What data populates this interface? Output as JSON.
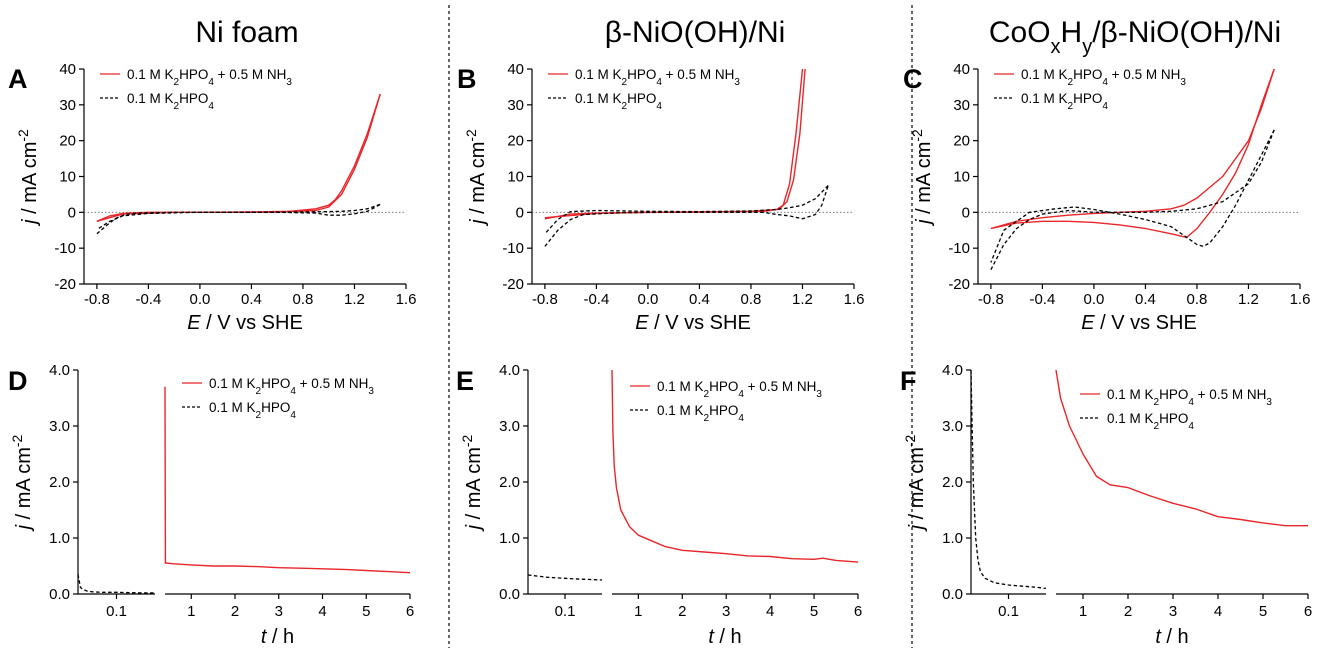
{
  "figure": {
    "columns": [
      {
        "title_html": "Ni foam"
      },
      {
        "title_html": "β-NiO(OH)/Ni"
      },
      {
        "title_html": "CoO<tspan baseline-shift='sub' font-size='20'>x</tspan>H<tspan baseline-shift='sub' font-size='20'>y</tspan>/β-NiO(OH)/Ni"
      }
    ],
    "colors": {
      "nh3": "#e8262b",
      "blank": "#000000"
    }
  },
  "chart_data": [
    {
      "panel": "A",
      "type": "line",
      "xlabel_parts": [
        "E",
        " / V vs SHE"
      ],
      "ylabel_parts": [
        "j",
        " / mA cm",
        "-2"
      ],
      "xlim": [
        -0.9,
        1.6
      ],
      "ylim": [
        -20,
        40
      ],
      "xticks": [
        -0.8,
        -0.4,
        0.0,
        0.4,
        0.8,
        1.2,
        1.6
      ],
      "xtick_labels": [
        "-0.8",
        "-0.4",
        "0.0",
        "0.4",
        "0.8",
        "1.2",
        "1.6"
      ],
      "yticks": [
        -20,
        -10,
        0,
        10,
        20,
        30,
        40
      ],
      "ytick_labels": [
        "-20",
        "-10",
        "0",
        "10",
        "20",
        "30",
        "40"
      ],
      "legend": [
        "0.1 M K<tspan baseline-shift='sub' font-size='10'>2</tspan>HPO<tspan baseline-shift='sub' font-size='10'>4</tspan> + 0.5 M NH<tspan baseline-shift='sub' font-size='10'>3</tspan>",
        "0.1 M K<tspan baseline-shift='sub' font-size='10'>2</tspan>HPO<tspan baseline-shift='sub' font-size='10'>4</tspan>"
      ],
      "series": [
        {
          "style": "solid",
          "color": "#e8262b",
          "x": [
            -0.8,
            -0.7,
            -0.6,
            -0.4,
            0.0,
            0.4,
            0.7,
            0.9,
            1.0,
            1.05,
            1.1,
            1.2,
            1.3,
            1.4
          ],
          "y": [
            -2.5,
            -1.0,
            -0.3,
            0.0,
            0.0,
            0.1,
            0.3,
            1.0,
            2.0,
            3.5,
            6.0,
            13.0,
            22.0,
            33.0
          ]
        },
        {
          "style": "solid",
          "color": "#e8262b",
          "x": [
            1.4,
            1.3,
            1.2,
            1.1,
            1.0,
            0.9,
            0.6,
            0.2,
            -0.2,
            -0.6,
            -0.8
          ],
          "y": [
            33.0,
            21.0,
            12.0,
            5.0,
            1.5,
            0.5,
            0.1,
            0.0,
            0.0,
            -0.5,
            -2.5
          ]
        },
        {
          "style": "dashed",
          "color": "#000000",
          "x": [
            -0.8,
            -0.72,
            -0.65,
            -0.58,
            -0.5,
            -0.2,
            0.2,
            0.6,
            0.9,
            1.0,
            1.1,
            1.2,
            1.3,
            1.35,
            1.4
          ],
          "y": [
            -6.0,
            -3.5,
            -1.6,
            -0.6,
            -0.2,
            0.0,
            0.0,
            0.0,
            -0.2,
            -0.8,
            -0.8,
            -0.4,
            0.3,
            1.2,
            2.2
          ]
        },
        {
          "style": "dashed",
          "color": "#000000",
          "x": [
            1.4,
            1.3,
            1.2,
            1.1,
            1.0,
            0.8,
            0.4,
            0.0,
            -0.4,
            -0.6,
            -0.7,
            -0.8
          ],
          "y": [
            2.2,
            1.0,
            0.5,
            0.3,
            0.2,
            0.1,
            0.0,
            0.0,
            -0.3,
            -1.0,
            -2.5,
            -4.8
          ]
        }
      ]
    },
    {
      "panel": "B",
      "type": "line",
      "xlabel_parts": [
        "E",
        " / V vs SHE"
      ],
      "ylabel_parts": [
        "j",
        " / mA cm",
        "-2"
      ],
      "xlim": [
        -0.9,
        1.6
      ],
      "ylim": [
        -20,
        40
      ],
      "xticks": [
        -0.8,
        -0.4,
        0.0,
        0.4,
        0.8,
        1.2,
        1.6
      ],
      "xtick_labels": [
        "-0.8",
        "-0.4",
        "0.0",
        "0.4",
        "0.8",
        "1.2",
        "1.6"
      ],
      "yticks": [
        -20,
        -10,
        0,
        10,
        20,
        30,
        40
      ],
      "ytick_labels": [
        "-20",
        "-10",
        "0",
        "10",
        "20",
        "30",
        "40"
      ],
      "legend": [
        "0.1 M K<tspan baseline-shift='sub' font-size='10'>2</tspan>HPO<tspan baseline-shift='sub' font-size='10'>4</tspan> + 0.5 M NH<tspan baseline-shift='sub' font-size='10'>3</tspan>",
        "0.1 M K<tspan baseline-shift='sub' font-size='10'>2</tspan>HPO<tspan baseline-shift='sub' font-size='10'>4</tspan>"
      ],
      "series": [
        {
          "style": "solid",
          "color": "#e8262b",
          "x": [
            -0.8,
            -0.6,
            -0.4,
            0.0,
            0.4,
            0.8,
            1.0,
            1.05,
            1.1,
            1.15,
            1.2
          ],
          "y": [
            -1.8,
            -0.5,
            -0.2,
            0.0,
            0.1,
            0.3,
            0.8,
            2.0,
            8.0,
            22.0,
            40.0
          ]
        },
        {
          "style": "solid",
          "color": "#e8262b",
          "x": [
            1.22,
            1.18,
            1.13,
            1.08,
            1.02,
            0.9,
            0.4,
            0.0,
            -0.4,
            -0.8
          ],
          "y": [
            40.0,
            22.0,
            9.0,
            3.0,
            0.9,
            0.3,
            0.1,
            0.0,
            -0.3,
            -1.5
          ]
        },
        {
          "style": "dashed",
          "color": "#000000",
          "x": [
            -0.8,
            -0.7,
            -0.6,
            -0.5,
            -0.2,
            0.2,
            0.6,
            0.9,
            1.0,
            1.1,
            1.2,
            1.3,
            1.35,
            1.4
          ],
          "y": [
            -9.5,
            -5.0,
            -2.0,
            -0.6,
            -0.1,
            0.0,
            0.0,
            0.0,
            -0.6,
            -1.0,
            -1.8,
            -0.6,
            2.0,
            7.5
          ]
        },
        {
          "style": "dashed",
          "color": "#000000",
          "x": [
            1.4,
            1.3,
            1.2,
            1.1,
            1.0,
            0.8,
            0.4,
            0.0,
            -0.4,
            -0.6,
            -0.7,
            -0.8
          ],
          "y": [
            7.5,
            3.8,
            2.0,
            1.3,
            0.8,
            0.4,
            0.2,
            0.3,
            0.5,
            0.2,
            -2.0,
            -6.0
          ]
        }
      ]
    },
    {
      "panel": "C",
      "type": "line",
      "xlabel_parts": [
        "E",
        " / V vs SHE"
      ],
      "ylabel_parts": [
        "j",
        " / mA cm",
        "-2"
      ],
      "xlim": [
        -0.9,
        1.6
      ],
      "ylim": [
        -20,
        40
      ],
      "xticks": [
        -0.8,
        -0.4,
        0.0,
        0.4,
        0.8,
        1.2,
        1.6
      ],
      "xtick_labels": [
        "-0.8",
        "-0.4",
        "0.0",
        "0.4",
        "0.8",
        "1.2",
        "1.6"
      ],
      "yticks": [
        -20,
        -10,
        0,
        10,
        20,
        30,
        40
      ],
      "ytick_labels": [
        "-20",
        "-10",
        "0",
        "10",
        "20",
        "30",
        "40"
      ],
      "legend": [
        "0.1 M K<tspan baseline-shift='sub' font-size='10'>2</tspan>HPO<tspan baseline-shift='sub' font-size='10'>4</tspan> + 0.5 M NH<tspan baseline-shift='sub' font-size='10'>3</tspan>",
        "0.1 M K<tspan baseline-shift='sub' font-size='10'>2</tspan>HPO<tspan baseline-shift='sub' font-size='10'>4</tspan>"
      ],
      "series": [
        {
          "style": "solid",
          "color": "#e8262b",
          "x": [
            -0.8,
            -0.6,
            -0.4,
            -0.2,
            0.0,
            0.2,
            0.4,
            0.6,
            0.7,
            0.8,
            1.0,
            1.2,
            1.3,
            1.4
          ],
          "y": [
            -4.5,
            -2.5,
            -1.5,
            -0.8,
            -0.3,
            0.0,
            0.3,
            1.0,
            2.0,
            4.0,
            10.0,
            20.0,
            29.0,
            40.0
          ]
        },
        {
          "style": "solid",
          "color": "#e8262b",
          "x": [
            1.4,
            1.3,
            1.2,
            1.1,
            1.0,
            0.9,
            0.8,
            0.72,
            0.6,
            0.4,
            0.2,
            0.0,
            -0.2,
            -0.4,
            -0.6,
            -0.8
          ],
          "y": [
            40.0,
            30.0,
            19.0,
            11.0,
            5.0,
            0.0,
            -4.5,
            -7.0,
            -6.0,
            -4.5,
            -3.5,
            -2.8,
            -2.5,
            -2.5,
            -3.0,
            -4.5
          ]
        },
        {
          "style": "dashed",
          "color": "#000000",
          "x": [
            -0.8,
            -0.7,
            -0.6,
            -0.5,
            -0.4,
            -0.2,
            -0.1,
            0.0,
            0.2,
            0.4,
            0.6,
            0.8,
            1.0,
            1.2,
            1.3,
            1.4
          ],
          "y": [
            -16.0,
            -9.0,
            -4.5,
            -2.0,
            -0.5,
            0.5,
            0.3,
            0.0,
            0.0,
            0.0,
            0.3,
            1.0,
            3.0,
            8.0,
            14.0,
            23.0
          ]
        },
        {
          "style": "dashed",
          "color": "#000000",
          "x": [
            1.4,
            1.3,
            1.2,
            1.1,
            1.0,
            0.9,
            0.85,
            0.8,
            0.7,
            0.6,
            0.4,
            0.2,
            0.0,
            -0.15,
            -0.3,
            -0.5,
            -0.7,
            -0.8
          ],
          "y": [
            23.0,
            16.0,
            9.0,
            2.0,
            -4.0,
            -8.5,
            -9.5,
            -9.0,
            -6.5,
            -4.0,
            -2.0,
            -0.5,
            0.8,
            1.5,
            1.0,
            0.0,
            -5.0,
            -14.0
          ]
        }
      ]
    },
    {
      "panel": "D",
      "type": "line",
      "xlabel_parts": [
        "t",
        " / h"
      ],
      "ylabel_parts": [
        "j",
        " / mA cm",
        "-2"
      ],
      "ylim": [
        0,
        4.0
      ],
      "yticks": [
        0,
        1,
        2,
        3,
        4
      ],
      "ytick_labels": [
        "0.0",
        "1.0",
        "2.0",
        "3.0",
        "4.0"
      ],
      "left_segment": {
        "xlim": [
          0.02,
          0.18
        ],
        "xticks": [
          0.1
        ],
        "xtick_labels": [
          "0.1"
        ]
      },
      "right_segment": {
        "xlim": [
          0.4,
          6.0
        ],
        "xticks": [
          1,
          2,
          3,
          4,
          5,
          6
        ],
        "xtick_labels": [
          "1",
          "2",
          "3",
          "4",
          "5",
          "6"
        ]
      },
      "legend": [
        "0.1 M K<tspan baseline-shift='sub' font-size='10'>2</tspan>HPO<tspan baseline-shift='sub' font-size='10'>4</tspan> + 0.5 M NH<tspan baseline-shift='sub' font-size='10'>3</tspan>",
        "0.1 M K<tspan baseline-shift='sub' font-size='10'>2</tspan>HPO<tspan baseline-shift='sub' font-size='10'>4</tspan>"
      ],
      "series": [
        {
          "segment": "left",
          "style": "dashed",
          "color": "#000000",
          "x": [
            0.02,
            0.025,
            0.03,
            0.04,
            0.05,
            0.07,
            0.1,
            0.15,
            0.18
          ],
          "y": [
            0.35,
            0.12,
            0.08,
            0.05,
            0.04,
            0.03,
            0.03,
            0.02,
            0.02
          ]
        },
        {
          "segment": "right",
          "style": "solid",
          "color": "#e8262b",
          "x": [
            0.4,
            0.41,
            0.42,
            0.45,
            0.6,
            1.0,
            1.5,
            2.0,
            2.5,
            3.0,
            3.5,
            4.0,
            4.5,
            5.0,
            5.5,
            6.0
          ],
          "y": [
            3.7,
            0.55,
            0.56,
            0.55,
            0.54,
            0.52,
            0.5,
            0.5,
            0.49,
            0.47,
            0.46,
            0.45,
            0.44,
            0.42,
            0.4,
            0.38
          ]
        }
      ]
    },
    {
      "panel": "E",
      "type": "line",
      "xlabel_parts": [
        "t",
        " / h"
      ],
      "ylabel_parts": [
        "j",
        " / mA cm",
        "-2"
      ],
      "ylim": [
        0,
        4.0
      ],
      "yticks": [
        0,
        1,
        2,
        3,
        4
      ],
      "ytick_labels": [
        "0.0",
        "1.0",
        "2.0",
        "3.0",
        "4.0"
      ],
      "left_segment": {
        "xlim": [
          0.02,
          0.18
        ],
        "xticks": [
          0.1
        ],
        "xtick_labels": [
          "0.1"
        ]
      },
      "right_segment": {
        "xlim": [
          0.4,
          6.0
        ],
        "xticks": [
          1,
          2,
          3,
          4,
          5,
          6
        ],
        "xtick_labels": [
          "1",
          "2",
          "3",
          "4",
          "5",
          "6"
        ]
      },
      "legend": [
        "0.1 M K<tspan baseline-shift='sub' font-size='10'>2</tspan>HPO<tspan baseline-shift='sub' font-size='10'>4</tspan> + 0.5 M NH<tspan baseline-shift='sub' font-size='10'>3</tspan>",
        "0.1 M K<tspan baseline-shift='sub' font-size='10'>2</tspan>HPO<tspan baseline-shift='sub' font-size='10'>4</tspan>"
      ],
      "series": [
        {
          "segment": "left",
          "style": "dashed",
          "color": "#000000",
          "x": [
            0.02,
            0.04,
            0.06,
            0.08,
            0.1,
            0.12,
            0.15,
            0.18
          ],
          "y": [
            0.34,
            0.32,
            0.3,
            0.29,
            0.28,
            0.27,
            0.26,
            0.25
          ]
        },
        {
          "segment": "right",
          "style": "solid",
          "color": "#e8262b",
          "x": [
            0.4,
            0.42,
            0.45,
            0.5,
            0.6,
            0.8,
            1.0,
            1.3,
            1.6,
            2.0,
            2.5,
            3.0,
            3.5,
            4.0,
            4.5,
            5.0,
            5.2,
            5.5,
            6.0
          ],
          "y": [
            4.0,
            2.9,
            2.3,
            1.9,
            1.5,
            1.2,
            1.05,
            0.95,
            0.85,
            0.78,
            0.75,
            0.72,
            0.68,
            0.67,
            0.63,
            0.62,
            0.64,
            0.6,
            0.57
          ]
        }
      ]
    },
    {
      "panel": "F",
      "type": "line",
      "xlabel_parts": [
        "t",
        " / h"
      ],
      "ylabel_parts": [
        "j",
        " / mA cm",
        "-2"
      ],
      "ylim": [
        0,
        4.0
      ],
      "yticks": [
        0,
        1,
        2,
        3,
        4
      ],
      "ytick_labels": [
        "0.0",
        "1.0",
        "2.0",
        "3.0",
        "4.0"
      ],
      "left_segment": {
        "xlim": [
          0.02,
          0.18
        ],
        "xticks": [
          0.1
        ],
        "xtick_labels": [
          "0.1"
        ]
      },
      "right_segment": {
        "xlim": [
          0.4,
          6.0
        ],
        "xticks": [
          1,
          2,
          3,
          4,
          5,
          6
        ],
        "xtick_labels": [
          "1",
          "2",
          "3",
          "4",
          "5",
          "6"
        ]
      },
      "legend": [
        "0.1 M K<tspan baseline-shift='sub' font-size='10'>2</tspan>HPO<tspan baseline-shift='sub' font-size='10'>4</tspan> + 0.5 M NH<tspan baseline-shift='sub' font-size='10'>3</tspan>",
        "0.1 M K<tspan baseline-shift='sub' font-size='10'>2</tspan>HPO<tspan baseline-shift='sub' font-size='10'>4</tspan>"
      ],
      "series": [
        {
          "segment": "left",
          "style": "dashed",
          "color": "#000000",
          "x": [
            0.02,
            0.022,
            0.025,
            0.03,
            0.035,
            0.04,
            0.05,
            0.07,
            0.1,
            0.13,
            0.16,
            0.18
          ],
          "y": [
            4.0,
            3.2,
            2.0,
            1.0,
            0.6,
            0.4,
            0.28,
            0.2,
            0.16,
            0.14,
            0.12,
            0.1
          ]
        },
        {
          "segment": "right",
          "style": "solid",
          "color": "#e8262b",
          "x": [
            0.4,
            0.5,
            0.7,
            1.0,
            1.3,
            1.6,
            2.0,
            2.5,
            3.0,
            3.5,
            4.0,
            4.5,
            5.0,
            5.5,
            6.0
          ],
          "y": [
            4.0,
            3.5,
            3.0,
            2.5,
            2.1,
            1.95,
            1.9,
            1.75,
            1.62,
            1.52,
            1.38,
            1.33,
            1.27,
            1.22,
            1.22
          ]
        }
      ]
    }
  ]
}
